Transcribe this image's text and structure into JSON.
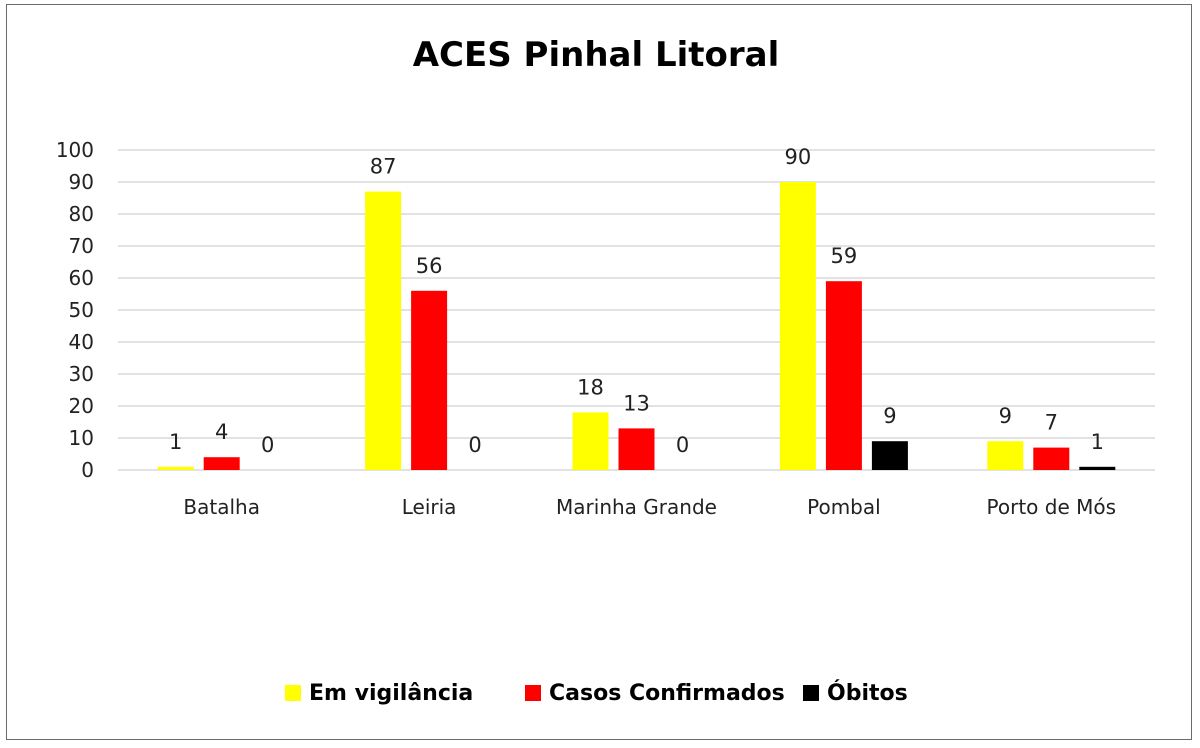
{
  "chart_data": {
    "type": "bar",
    "title": "ACES Pinhal Litoral",
    "xlabel": "",
    "ylabel": "",
    "ylim": [
      0,
      100
    ],
    "yticks": [
      "0",
      "10",
      "20",
      "30",
      "40",
      "50",
      "60",
      "70",
      "80",
      "90",
      "100"
    ],
    "grid": true,
    "legend_position": "bottom",
    "categories": [
      "Batalha",
      "Leiria",
      "Marinha Grande",
      "Pombal",
      "Porto de Mós"
    ],
    "series": [
      {
        "name": "Em vigilância",
        "color": "#ffff00",
        "values": [
          1,
          87,
          18,
          90,
          9
        ]
      },
      {
        "name": "Casos Confirmados",
        "color": "#ff0000",
        "values": [
          4,
          56,
          13,
          59,
          7
        ]
      },
      {
        "name": "Óbitos",
        "color": "#000000",
        "values": [
          0,
          0,
          0,
          9,
          1
        ]
      }
    ]
  }
}
